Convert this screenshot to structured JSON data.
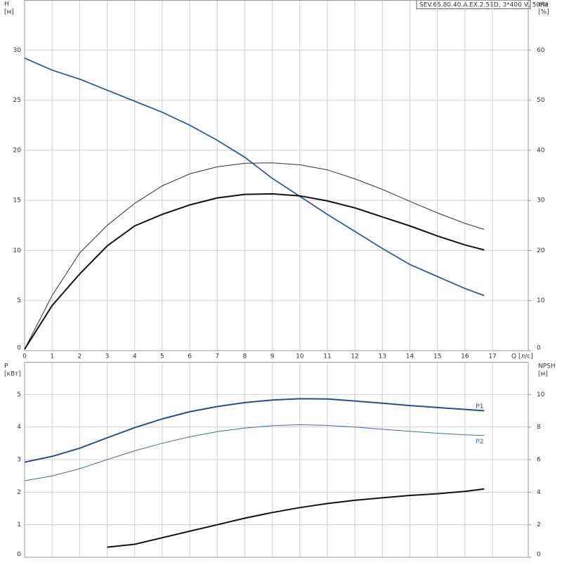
{
  "chart_data": [
    {
      "type": "line",
      "title": "SEV.65.80.40.A.EX.2.51D, 3*400 V, 50Hz",
      "y_label": "H",
      "y_unit": "[м]",
      "y2_label": "eta",
      "y2_unit": "[%]",
      "x_label": "Q [л/с]",
      "x": [
        0,
        1,
        2,
        3,
        4,
        5,
        6,
        7,
        8,
        9,
        10,
        11,
        12,
        13,
        14,
        15,
        16,
        16.7
      ],
      "xlim": [
        0,
        18.3
      ],
      "xticks": [
        0,
        1,
        2,
        3,
        4,
        5,
        6,
        7,
        8,
        9,
        10,
        11,
        12,
        13,
        14,
        15,
        16,
        17
      ],
      "ylim": [
        0,
        35
      ],
      "yticks": [
        0,
        5,
        10,
        15,
        20,
        25,
        30
      ],
      "y2lim": [
        0,
        70
      ],
      "y2ticks": [
        0,
        10,
        20,
        30,
        40,
        50,
        60
      ],
      "grid": true,
      "series": [
        {
          "color": "#2a5d9c",
          "width": 1.8,
          "values": [
            29.2,
            28.0,
            27.1,
            26.0,
            24.9,
            23.8,
            22.5,
            21.0,
            19.3,
            17.2,
            15.4,
            13.6,
            11.9,
            10.2,
            8.6,
            7.4,
            6.2,
            5.5
          ]
        },
        {
          "color": "#333333",
          "width": 1,
          "axis": "y2",
          "values": [
            0.3,
            11,
            19.5,
            25,
            29.4,
            32.9,
            35.3,
            36.7,
            37.4,
            37.5,
            37.1,
            36.1,
            34.3,
            32.2,
            29.8,
            27.5,
            25.4,
            24.2
          ]
        },
        {
          "color": "#111111",
          "width": 2,
          "axis": "y2",
          "values": [
            0.3,
            9.0,
            15.3,
            20.9,
            24.9,
            27.2,
            29.1,
            30.5,
            31.2,
            31.3,
            30.9,
            29.9,
            28.5,
            26.7,
            24.9,
            22.9,
            21.1,
            20.1
          ]
        }
      ]
    },
    {
      "type": "line",
      "y_label": "P",
      "y_unit": "[кВт]",
      "y2_label": "NPSH",
      "y2_unit": "[м]",
      "x": [
        0,
        1,
        2,
        3,
        4,
        5,
        6,
        7,
        8,
        9,
        10,
        11,
        12,
        13,
        14,
        15,
        16,
        16.7
      ],
      "xlim": [
        0,
        18.3
      ],
      "xticks": [
        0,
        1,
        2,
        3,
        4,
        5,
        6,
        7,
        8,
        9,
        10,
        11,
        12,
        13,
        14,
        15,
        16,
        17
      ],
      "ylim": [
        0,
        6
      ],
      "yticks": [
        0,
        1,
        2,
        3,
        4,
        5
      ],
      "y2lim": [
        0,
        12
      ],
      "y2ticks": [
        0,
        2,
        4,
        6,
        8,
        10
      ],
      "grid": true,
      "series": [
        {
          "name": "P1",
          "color": "#24508a",
          "width": 2,
          "values": [
            2.92,
            3.1,
            3.35,
            3.67,
            3.98,
            4.25,
            4.47,
            4.63,
            4.75,
            4.83,
            4.87,
            4.86,
            4.8,
            4.73,
            4.66,
            4.6,
            4.54,
            4.5
          ]
        },
        {
          "name": "P2",
          "color": "#3a6ea5",
          "width": 1,
          "values": [
            2.35,
            2.5,
            2.72,
            3.0,
            3.27,
            3.5,
            3.7,
            3.86,
            3.97,
            4.04,
            4.07,
            4.05,
            4.0,
            3.93,
            3.87,
            3.81,
            3.76,
            3.74
          ]
        },
        {
          "color": "#111111",
          "width": 2,
          "axis": "y2",
          "values": [
            null,
            null,
            null,
            0.62,
            0.8,
            1.2,
            1.6,
            2.0,
            2.4,
            2.75,
            3.05,
            3.3,
            3.5,
            3.65,
            3.8,
            3.9,
            4.05,
            4.2
          ]
        }
      ]
    }
  ]
}
